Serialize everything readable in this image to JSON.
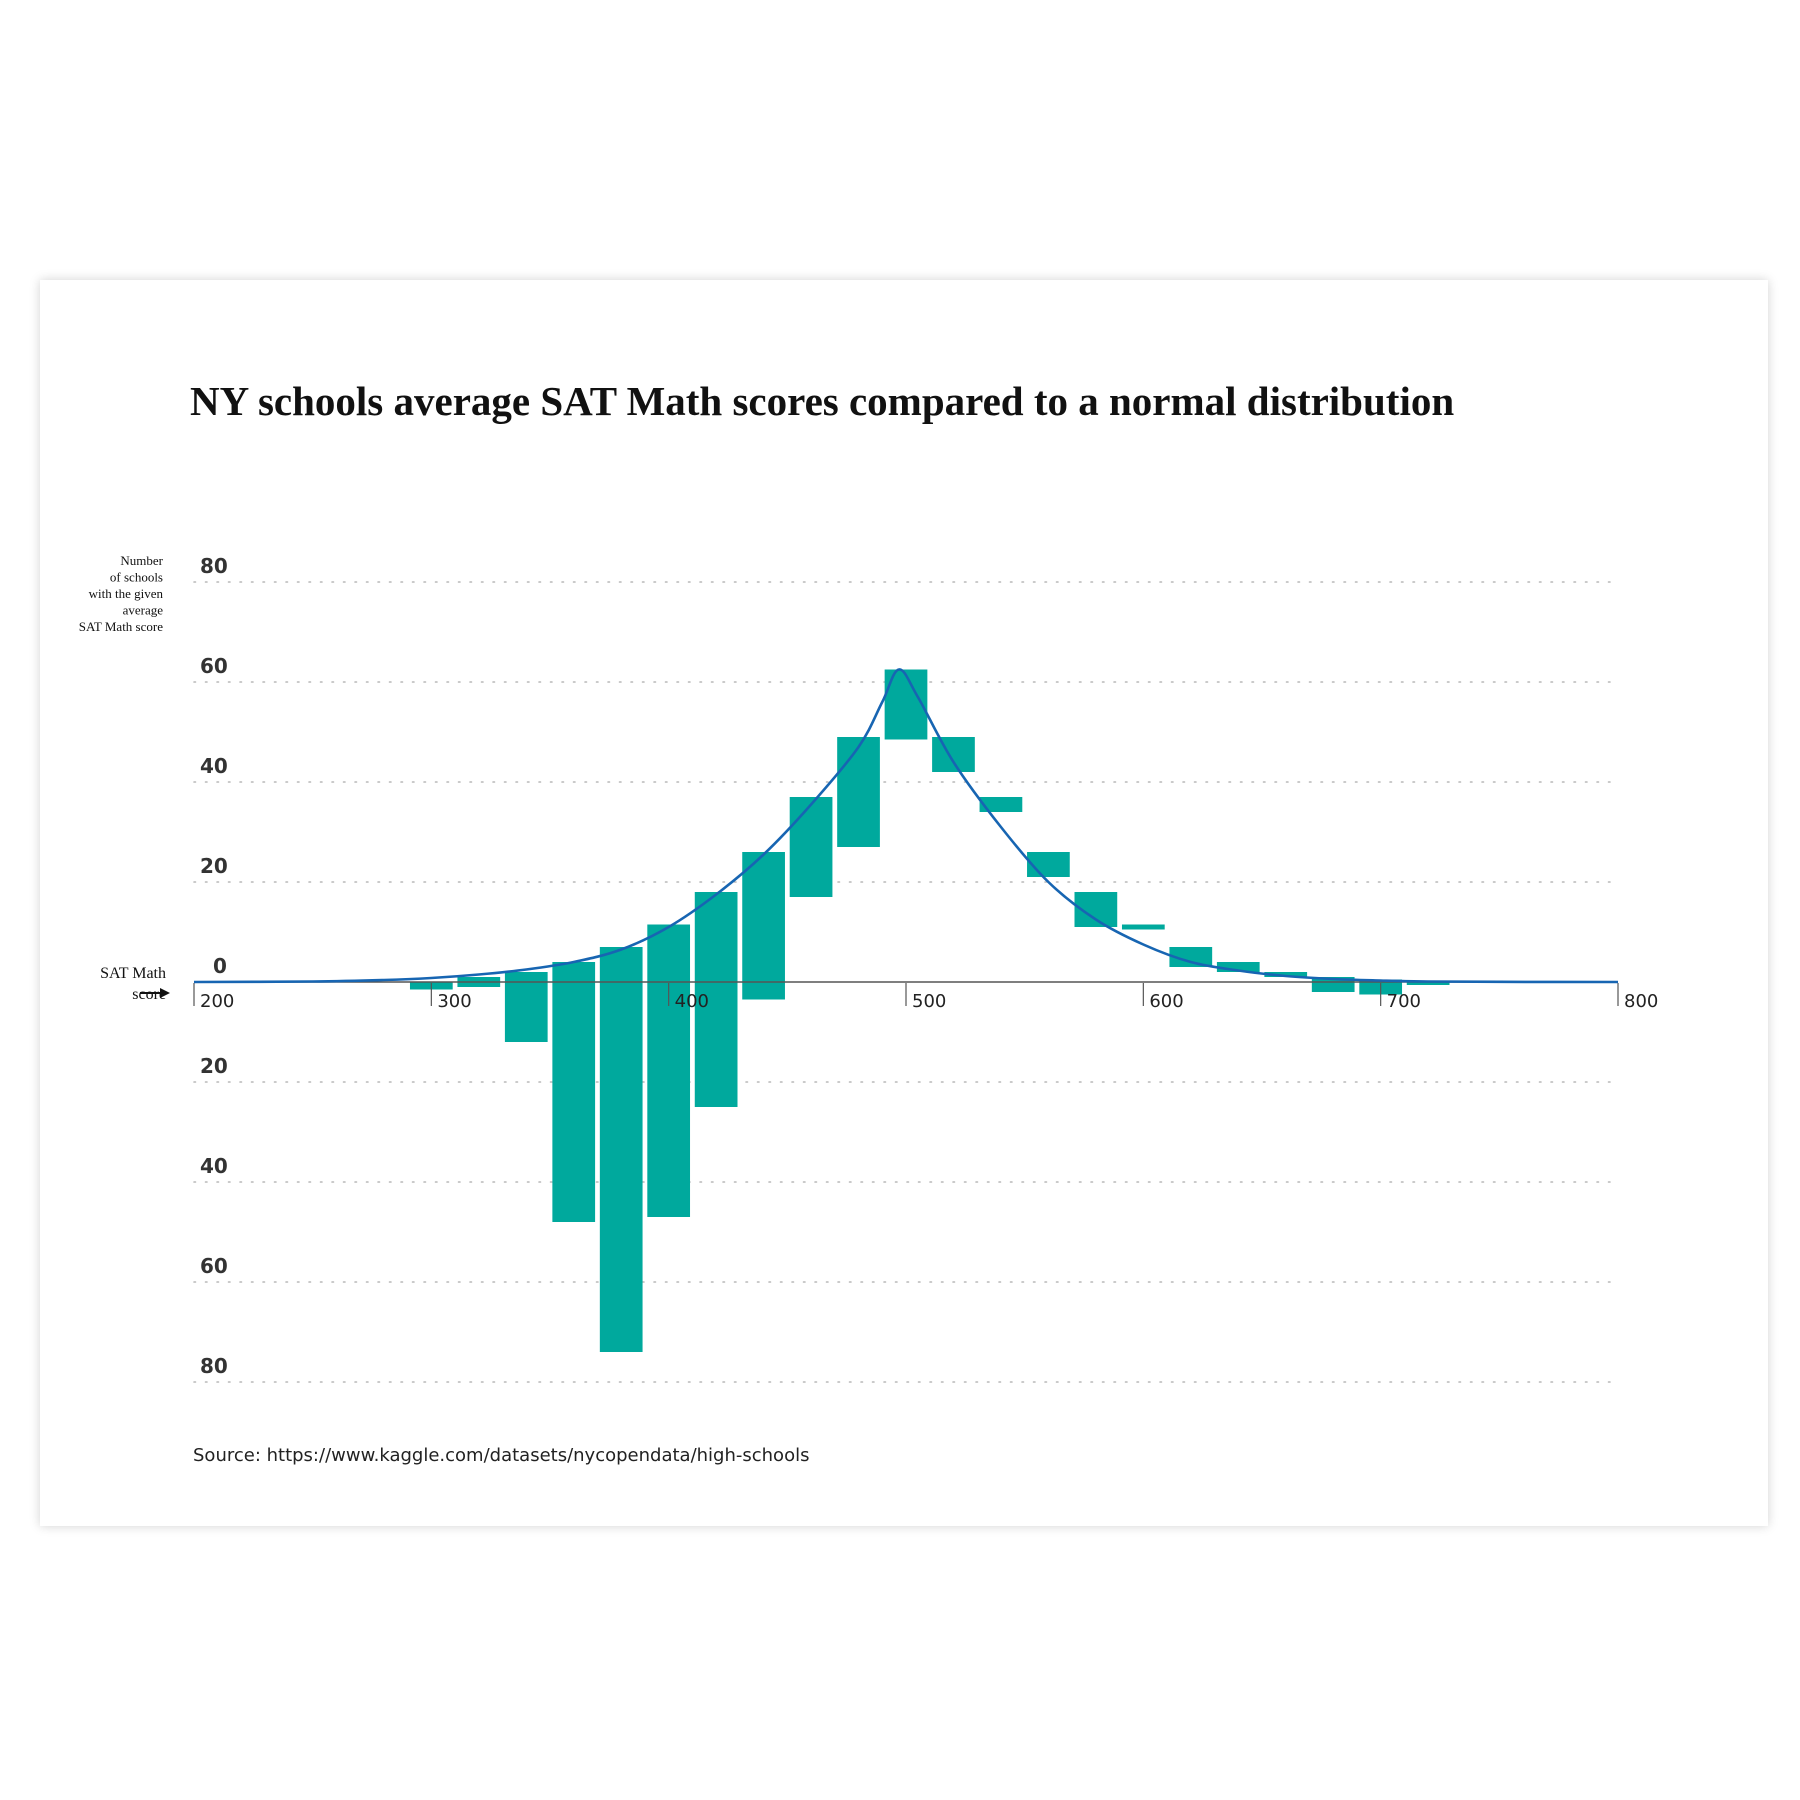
{
  "chart_data": {
    "type": "bar",
    "title": "NY schools average SAT Math scores compared to a normal distribution",
    "ylabel_lines": [
      "Number",
      "of schools",
      "with the given",
      "average",
      "SAT Math score"
    ],
    "xlabel_lines": [
      "SAT Math",
      "score"
    ],
    "y_ticks": [
      "80",
      "60",
      "40",
      "20",
      "0",
      "20",
      "40",
      "60",
      "80"
    ],
    "y_tick_values": [
      80,
      60,
      40,
      20,
      0,
      -20,
      -40,
      -60,
      -80
    ],
    "ylim": [
      -80,
      80
    ],
    "xlim": [
      200,
      800
    ],
    "x_ticks": [
      200,
      300,
      400,
      500,
      600,
      700,
      800
    ],
    "x_tick_labels": [
      "200",
      "300",
      "400",
      "500",
      "600",
      "700",
      "800"
    ],
    "bar_width": 18,
    "description": "Each bar spans from the actual count of schools (observed histogram) to the expected count from a normal distribution.",
    "bars": [
      {
        "x": 300,
        "actual": 0,
        "expected": -1.5
      },
      {
        "x": 320,
        "actual": 1,
        "expected": -1
      },
      {
        "x": 340,
        "actual": 2,
        "expected": -12
      },
      {
        "x": 360,
        "actual": 4,
        "expected": -48
      },
      {
        "x": 380,
        "actual": 7,
        "expected": -74
      },
      {
        "x": 400,
        "actual": 11.5,
        "expected": -47
      },
      {
        "x": 420,
        "actual": 18,
        "expected": -25
      },
      {
        "x": 440,
        "actual": 26,
        "expected": -3.5
      },
      {
        "x": 460,
        "actual": 37,
        "expected": 17
      },
      {
        "x": 480,
        "actual": 49,
        "expected": 27
      },
      {
        "x": 500,
        "actual": 62.5,
        "expected": 48.5
      },
      {
        "x": 520,
        "actual": 49,
        "expected": 42
      },
      {
        "x": 540,
        "actual": 37,
        "expected": 34
      },
      {
        "x": 560,
        "actual": 26,
        "expected": 21
      },
      {
        "x": 580,
        "actual": 18,
        "expected": 11
      },
      {
        "x": 600,
        "actual": 11.5,
        "expected": 10.5
      },
      {
        "x": 620,
        "actual": 7,
        "expected": 3
      },
      {
        "x": 640,
        "actual": 4,
        "expected": 2
      },
      {
        "x": 660,
        "actual": 2,
        "expected": 1
      },
      {
        "x": 680,
        "actual": 1,
        "expected": -2
      },
      {
        "x": 700,
        "actual": 0.5,
        "expected": -2.5
      },
      {
        "x": 720,
        "actual": 0.3,
        "expected": -0.6
      }
    ],
    "normal_curve": {
      "name": "Normal distribution",
      "peak_x": 497,
      "peak_y": 62.5,
      "x": [
        200,
        250,
        280,
        300,
        320,
        340,
        360,
        380,
        400,
        420,
        440,
        460,
        480,
        490,
        497,
        505,
        520,
        540,
        560,
        580,
        600,
        620,
        640,
        660,
        680,
        700,
        720,
        750,
        800
      ],
      "y": [
        0,
        0.1,
        0.4,
        0.8,
        1.5,
        2.5,
        4,
        6.5,
        11,
        17.5,
        25.5,
        35.5,
        47,
        56,
        62.5,
        57,
        44,
        31,
        20,
        12.5,
        7.5,
        4,
        2.3,
        1.2,
        0.6,
        0.3,
        0.1,
        0.03,
        0
      ]
    },
    "source": "Source: https://www.kaggle.com/datasets/nycopendata/high-schools",
    "colors": {
      "bar": "#00a99d",
      "curve": "#1765b2",
      "axis": "#555555",
      "grid": "#b8b8b8"
    }
  }
}
